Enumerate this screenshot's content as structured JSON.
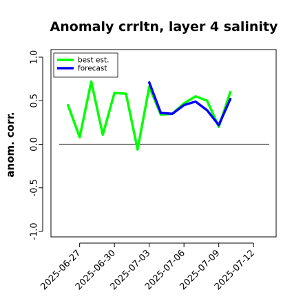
{
  "chart_data": {
    "type": "line",
    "title": "Anomaly crrltn, layer 4 salinity",
    "ylabel": "anom. corr.",
    "xlabel": "",
    "ylim": [
      -1.0,
      1.0
    ],
    "yticks": [
      -1.0,
      -0.5,
      0.0,
      0.5,
      1.0
    ],
    "ytick_labels": [
      "-1.0",
      "-0.5",
      "0.0",
      "0.5",
      "1.0"
    ],
    "xlim": [
      "2025-06-25",
      "2025-07-13"
    ],
    "xticks": [
      "2025-06-27",
      "2025-06-30",
      "2025-07-03",
      "2025-07-06",
      "2025-07-09",
      "2025-07-12"
    ],
    "xtick_colors": [
      "#000000",
      "#000000",
      "#228b22",
      "#000000",
      "#000000",
      "#000000"
    ],
    "reference_line": 0.0,
    "legend_position": "top-left",
    "series": [
      {
        "name": "best est.",
        "color": "#00ff00",
        "x": [
          "2025-06-26",
          "2025-06-27",
          "2025-06-28",
          "2025-06-29",
          "2025-06-30",
          "2025-07-01",
          "2025-07-02",
          "2025-07-03",
          "2025-07-04",
          "2025-07-05",
          "2025-07-06",
          "2025-07-07",
          "2025-07-08",
          "2025-07-09",
          "2025-07-10"
        ],
        "y": [
          0.45,
          0.08,
          0.72,
          0.11,
          0.59,
          0.58,
          -0.06,
          0.66,
          0.34,
          0.35,
          0.47,
          0.55,
          0.5,
          0.2,
          0.6
        ]
      },
      {
        "name": "forecast",
        "color": "#0000ff",
        "x": [
          "2025-07-03",
          "2025-07-04",
          "2025-07-05",
          "2025-07-06",
          "2025-07-07",
          "2025-07-08",
          "2025-07-09",
          "2025-07-10"
        ],
        "y": [
          0.71,
          0.36,
          0.35,
          0.45,
          0.49,
          0.39,
          0.22,
          0.52
        ]
      }
    ]
  }
}
